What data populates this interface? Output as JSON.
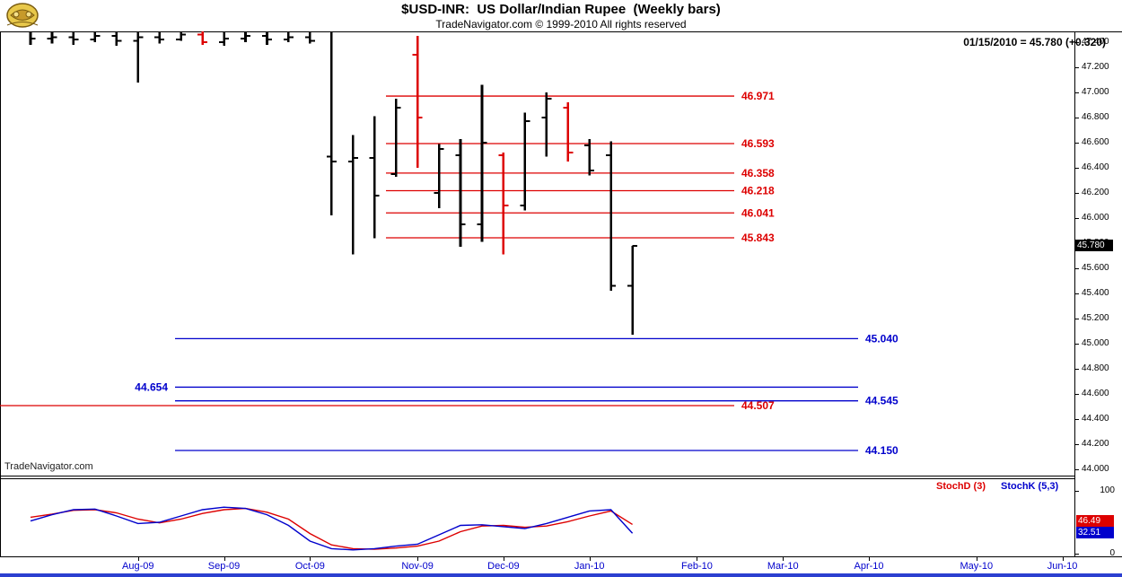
{
  "colors": {
    "red": "#dd0000",
    "blue": "#0000cc",
    "black": "#000000",
    "badge_bg": "#000000",
    "taskbar": "#2b3fd0",
    "gold": "#e8c84a"
  },
  "header": {
    "title": "$USD-INR:  US Dollar/Indian Rupee  (Weekly bars)",
    "subtitle": "TradeNavigator.com © 1999-2010 All rights reserved",
    "quote": "01/15/2010 = 45.780 (+0.320)"
  },
  "watermark": "TradeNavigator.com",
  "price_badge": "45.780",
  "chart_data": [
    {
      "type": "bar",
      "subtype": "ohlc-weekly",
      "title": "$USD-INR US Dollar/Indian Rupee (Weekly bars)",
      "ylim": [
        44.0,
        47.4
      ],
      "grid": false,
      "y_ticks": [
        "47.400",
        "47.200",
        "47.000",
        "46.800",
        "46.600",
        "46.400",
        "46.200",
        "46.000",
        "45.800",
        "45.600",
        "45.400",
        "45.200",
        "45.000",
        "44.800",
        "44.600",
        "44.400",
        "44.200",
        "44.000"
      ],
      "x_months": [
        {
          "label": "Aug-09",
          "week": 5
        },
        {
          "label": "Sep-09",
          "week": 9
        },
        {
          "label": "Oct-09",
          "week": 13
        },
        {
          "label": "Nov-09",
          "week": 18
        },
        {
          "label": "Dec-09",
          "week": 22
        },
        {
          "label": "Jan-10",
          "week": 26
        },
        {
          "label": "Feb-10",
          "week": 31
        },
        {
          "label": "Mar-10",
          "week": 35
        },
        {
          "label": "Apr-10",
          "week": 39
        },
        {
          "label": "May-10",
          "week": 44
        },
        {
          "label": "Jun-10",
          "week": 48
        }
      ],
      "bars": [
        {
          "d": "07/03/09",
          "o": 47.52,
          "h": 47.8,
          "l": 47.38,
          "c": 47.43,
          "col": "black"
        },
        {
          "d": "07/10/09",
          "o": 47.43,
          "h": 47.75,
          "l": 47.39,
          "c": 47.44,
          "col": "black"
        },
        {
          "d": "07/17/09",
          "o": 47.44,
          "h": 47.72,
          "l": 47.38,
          "c": 47.42,
          "col": "black"
        },
        {
          "d": "07/24/09",
          "o": 47.42,
          "h": 47.7,
          "l": 47.4,
          "c": 47.45,
          "col": "black"
        },
        {
          "d": "07/31/09",
          "o": 47.45,
          "h": 47.68,
          "l": 47.37,
          "c": 47.41,
          "col": "black"
        },
        {
          "d": "08/07/09",
          "o": 47.41,
          "h": 47.78,
          "l": 47.08,
          "c": 47.44,
          "col": "black"
        },
        {
          "d": "08/14/09",
          "o": 47.44,
          "h": 47.66,
          "l": 47.39,
          "c": 47.42,
          "col": "black"
        },
        {
          "d": "08/21/09",
          "o": 47.42,
          "h": 47.72,
          "l": 47.41,
          "c": 47.46,
          "col": "black"
        },
        {
          "d": "08/28/09",
          "o": 47.46,
          "h": 47.7,
          "l": 47.38,
          "c": 47.4,
          "col": "red"
        },
        {
          "d": "09/04/09",
          "o": 47.4,
          "h": 47.67,
          "l": 47.37,
          "c": 47.43,
          "col": "black"
        },
        {
          "d": "09/11/09",
          "o": 47.43,
          "h": 47.7,
          "l": 47.4,
          "c": 47.45,
          "col": "black"
        },
        {
          "d": "09/18/09",
          "o": 47.45,
          "h": 47.68,
          "l": 47.38,
          "c": 47.42,
          "col": "black"
        },
        {
          "d": "09/25/09",
          "o": 47.42,
          "h": 47.66,
          "l": 47.4,
          "c": 47.44,
          "col": "black"
        },
        {
          "d": "10/02/09",
          "o": 47.44,
          "h": 47.63,
          "l": 47.39,
          "c": 47.41,
          "col": "black"
        },
        {
          "d": "10/09/09",
          "o": 46.49,
          "h": 47.55,
          "l": 46.02,
          "c": 46.45,
          "col": "black"
        },
        {
          "d": "10/16/09",
          "o": 46.45,
          "h": 46.66,
          "l": 45.71,
          "c": 46.48,
          "col": "black"
        },
        {
          "d": "10/23/09",
          "o": 46.48,
          "h": 46.81,
          "l": 45.84,
          "c": 46.18,
          "col": "black"
        },
        {
          "d": "10/30/09",
          "o": 46.35,
          "h": 46.95,
          "l": 46.33,
          "c": 46.88,
          "col": "black"
        },
        {
          "d": "11/06/09",
          "o": 47.3,
          "h": 47.45,
          "l": 46.4,
          "c": 46.8,
          "col": "red"
        },
        {
          "d": "11/13/09",
          "o": 46.2,
          "h": 46.59,
          "l": 46.08,
          "c": 46.55,
          "col": "black"
        },
        {
          "d": "11/20/09",
          "o": 46.5,
          "h": 46.63,
          "l": 45.77,
          "c": 45.95,
          "col": "black"
        },
        {
          "d": "11/27/09",
          "o": 45.95,
          "h": 47.06,
          "l": 45.81,
          "c": 46.6,
          "col": "black"
        },
        {
          "d": "12/04/09",
          "o": 46.5,
          "h": 46.52,
          "l": 45.71,
          "c": 46.1,
          "col": "red"
        },
        {
          "d": "12/11/09",
          "o": 46.1,
          "h": 46.84,
          "l": 46.06,
          "c": 46.77,
          "col": "black"
        },
        {
          "d": "12/18/09",
          "o": 46.8,
          "h": 47.0,
          "l": 46.49,
          "c": 46.95,
          "col": "black"
        },
        {
          "d": "12/25/09",
          "o": 46.88,
          "h": 46.92,
          "l": 46.45,
          "c": 46.52,
          "col": "red"
        },
        {
          "d": "01/01/10",
          "o": 46.58,
          "h": 46.63,
          "l": 46.34,
          "c": 46.38,
          "col": "black"
        },
        {
          "d": "01/08/10",
          "o": 46.5,
          "h": 46.61,
          "l": 45.42,
          "c": 45.46,
          "col": "black"
        },
        {
          "d": "01/15/10",
          "o": 45.46,
          "h": 45.78,
          "l": 45.07,
          "c": 45.78,
          "col": "black"
        }
      ],
      "levels": [
        {
          "value": 46.971,
          "label": "46.971",
          "color": "red",
          "label_side": "right",
          "x1": 430,
          "x2": 818
        },
        {
          "value": 46.593,
          "label": "46.593",
          "color": "red",
          "label_side": "right",
          "x1": 430,
          "x2": 818
        },
        {
          "value": 46.358,
          "label": "46.358",
          "color": "red",
          "label_side": "right",
          "x1": 430,
          "x2": 818
        },
        {
          "value": 46.218,
          "label": "46.218",
          "color": "red",
          "label_side": "right",
          "x1": 430,
          "x2": 818
        },
        {
          "value": 46.041,
          "label": "46.041",
          "color": "red",
          "label_side": "right",
          "x1": 430,
          "x2": 818
        },
        {
          "value": 45.843,
          "label": "45.843",
          "color": "red",
          "label_side": "right",
          "x1": 430,
          "x2": 818
        },
        {
          "value": 45.04,
          "label": "45.040",
          "color": "blue",
          "label_side": "right",
          "x1": 195,
          "x2": 956
        },
        {
          "value": 44.654,
          "label": "44.654",
          "color": "blue",
          "label_side": "left",
          "x1": 195,
          "x2": 956
        },
        {
          "value": 44.545,
          "label": "44.545",
          "color": "blue",
          "label_side": "right",
          "x1": 195,
          "x2": 956
        },
        {
          "value": 44.507,
          "label": "44.507",
          "color": "red",
          "label_side": "right",
          "x1": 0,
          "x2": 818
        },
        {
          "value": 44.15,
          "label": "44.150",
          "color": "blue",
          "label_side": "right",
          "x1": 195,
          "x2": 956
        }
      ]
    },
    {
      "type": "line",
      "title": "Stochastics",
      "ylim": [
        0,
        100
      ],
      "y_ticks": [
        "100",
        "0"
      ],
      "legend_position": "top-right",
      "series": [
        {
          "key": "stochd",
          "name": "StochD (3)",
          "color": "#dd0000",
          "last": "46.49",
          "values": [
            58,
            63,
            69,
            70,
            65,
            55,
            49,
            55,
            64,
            70,
            72,
            66,
            55,
            32,
            14,
            8,
            7,
            9,
            12,
            20,
            35,
            44,
            45,
            42,
            44,
            51,
            60,
            68,
            46.5
          ]
        },
        {
          "key": "stochk",
          "name": "StochK (5,3)",
          "color": "#0000cc",
          "last": "32.51",
          "values": [
            52,
            62,
            70,
            71,
            60,
            48,
            50,
            60,
            70,
            74,
            72,
            62,
            45,
            20,
            8,
            6,
            8,
            12,
            15,
            30,
            45,
            46,
            43,
            40,
            48,
            58,
            68,
            70,
            32.5
          ]
        }
      ]
    }
  ]
}
